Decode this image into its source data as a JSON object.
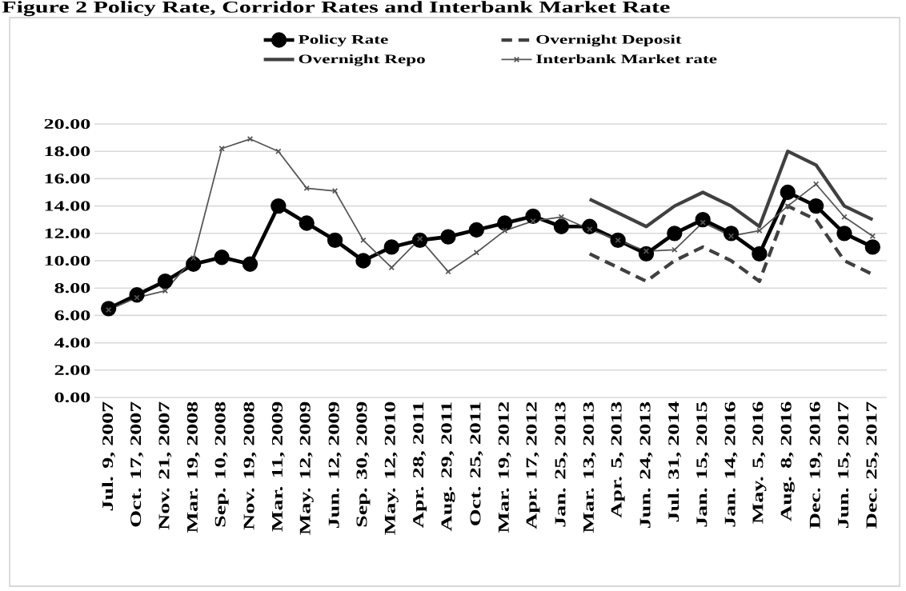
{
  "chart_data": {
    "type": "line",
    "title": "Figure 2 Policy Rate, Corridor Rates and Interbank Market Rate",
    "categories": [
      "Jul. 9, 2007",
      "Oct. 17, 2007",
      "Nov. 21, 2007",
      "Mar. 19, 2008",
      "Sep. 10, 2008",
      "Nov. 19, 2008",
      "Mar. 11, 2009",
      "May. 12, 2009",
      "Jun. 12, 2009",
      "Sep. 30, 2009",
      "May. 12, 2010",
      "Apr. 28, 2011",
      "Aug. 29, 2011",
      "Oct. 25, 2011",
      "Mar. 19, 2012",
      "Apr. 17, 2012",
      "Jan. 25, 2013",
      "Mar. 13, 2013",
      "Apr. 5, 2013",
      "Jun. 24, 2013",
      "Jul. 31, 2014",
      "Jan. 15, 2015",
      "Jan. 14, 2016",
      "May. 5, 2016",
      "Aug. 8, 2016",
      "Dec. 19, 2016",
      "Jun. 15, 2017",
      "Dec. 25, 2017"
    ],
    "series": [
      {
        "name": "Policy Rate",
        "color": "#000000",
        "marker": "circle",
        "line_style": "solid",
        "values": [
          6.5,
          7.5,
          8.5,
          9.75,
          10.25,
          9.75,
          14,
          12.75,
          11.5,
          10,
          11,
          11.5,
          11.75,
          12.25,
          12.75,
          13.25,
          12.5,
          12.5,
          11.5,
          10.5,
          12,
          13,
          12,
          10.5,
          15,
          14,
          12,
          11
        ]
      },
      {
        "name": "Overnight Deposit",
        "color": "#404040",
        "marker": "none",
        "line_style": "dashed",
        "values": [
          null,
          null,
          null,
          null,
          null,
          null,
          null,
          null,
          null,
          null,
          null,
          null,
          null,
          null,
          null,
          null,
          null,
          10.5,
          9.5,
          8.5,
          10,
          11,
          10,
          8.5,
          14,
          13,
          10,
          9
        ]
      },
      {
        "name": "Overnight Repo",
        "color": "#404040",
        "marker": "none",
        "line_style": "solid",
        "values": [
          null,
          null,
          null,
          null,
          null,
          null,
          null,
          null,
          null,
          null,
          null,
          null,
          null,
          null,
          null,
          null,
          null,
          14.5,
          13.5,
          12.5,
          14,
          15,
          14,
          12.5,
          18,
          17,
          14,
          13
        ]
      },
      {
        "name": "Interbank Market rate",
        "color": "#555555",
        "marker": "cross",
        "line_style": "solid",
        "values": [
          6.4,
          7.3,
          7.8,
          10.2,
          18.2,
          18.9,
          18.0,
          15.3,
          15.1,
          11.5,
          9.5,
          11.6,
          9.2,
          10.6,
          12.2,
          12.9,
          13.2,
          12.3,
          11.5,
          10.7,
          10.8,
          12.8,
          11.8,
          12.2,
          14.0,
          15.6,
          13.2,
          11.8
        ]
      }
    ],
    "ylim": [
      0,
      20
    ],
    "yticks": [
      {
        "value": 0,
        "label": "0.00"
      },
      {
        "value": 2,
        "label": "2.00"
      },
      {
        "value": 4,
        "label": "4.00"
      },
      {
        "value": 6,
        "label": "6.00"
      },
      {
        "value": 8,
        "label": "8.00"
      },
      {
        "value": 10,
        "label": "10.00"
      },
      {
        "value": 12,
        "label": "12.00"
      },
      {
        "value": 14,
        "label": "14.00"
      },
      {
        "value": 16,
        "label": "16.00"
      },
      {
        "value": 18,
        "label": "18.00"
      },
      {
        "value": 20,
        "label": "20.00"
      }
    ],
    "grid": "y",
    "legend": "top"
  }
}
